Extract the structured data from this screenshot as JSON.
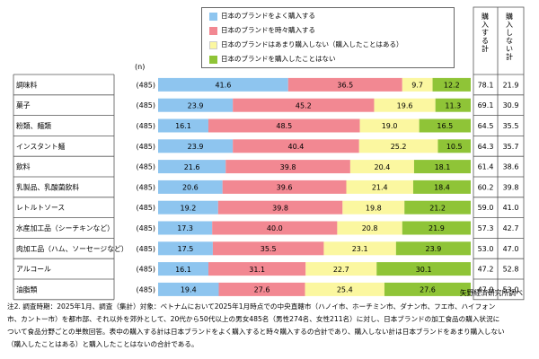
{
  "legend": [
    {
      "label": "日本のブランドをよく購入する",
      "color": "#8ec5ef"
    },
    {
      "label": "日本のブランドを時々購入する",
      "color": "#f28892"
    },
    {
      "label": "日本のブランドはあまり購入しない（購入したことはある）",
      "color": "#fbf7a0"
    },
    {
      "label": "日本のブランドを購入したことはない",
      "color": "#8fc437"
    }
  ],
  "n_header": "(n)",
  "sum_headers": {
    "buy": "購入する計",
    "nobuy": "購入しない計"
  },
  "chart_data": {
    "type": "bar",
    "orientation": "horizontal",
    "stacked": true,
    "percent_stacked": true,
    "categories": [
      "調味料",
      "菓子",
      "粉類、麺類",
      "インスタント麺",
      "飲料",
      "乳製品、乳酸菌飲料",
      "レトルトソース",
      "水産加工品（シーチキンなど）",
      "肉加工品（ハム、ソーセージなど）",
      "アルコール",
      "油脂類"
    ],
    "n": [
      "(485)",
      "(485)",
      "(485)",
      "(485)",
      "(485)",
      "(485)",
      "(485)",
      "(485)",
      "(485)",
      "(485)",
      "(485)"
    ],
    "series": [
      {
        "name": "日本のブランドをよく購入する",
        "values": [
          41.6,
          23.9,
          16.1,
          23.9,
          21.6,
          20.6,
          19.2,
          17.3,
          17.5,
          16.1,
          19.4
        ]
      },
      {
        "name": "日本のブランドを時々購入する",
        "values": [
          36.5,
          45.2,
          48.5,
          40.4,
          39.8,
          39.6,
          39.8,
          40.0,
          35.5,
          31.1,
          27.6
        ]
      },
      {
        "name": "日本のブランドはあまり購入しない（購入したことはある）",
        "values": [
          9.7,
          19.6,
          19.0,
          25.2,
          20.4,
          21.4,
          19.8,
          20.8,
          23.1,
          22.7,
          25.4
        ]
      },
      {
        "name": "日本のブランドを購入したことはない",
        "values": [
          12.2,
          11.3,
          16.5,
          10.5,
          18.1,
          18.4,
          21.2,
          21.9,
          23.9,
          30.1,
          27.6
        ]
      }
    ],
    "buy_total": [
      78.1,
      69.1,
      64.5,
      64.3,
      61.4,
      60.2,
      59.0,
      57.3,
      53.0,
      47.2,
      47.0
    ],
    "nobuy_total": [
      21.9,
      30.9,
      35.5,
      35.7,
      38.6,
      39.8,
      41.0,
      42.7,
      47.0,
      52.8,
      53.0
    ],
    "xlim": [
      0,
      100
    ],
    "unit": "%"
  },
  "source": "矢野経済研究所調べ",
  "note": [
    "注2. 調査時期：2025年1月、調査（集計）対象：ベトナムにおいて2025年1月時点での中央直轄市（ハノイ市、ホーチミン市、ダナン市、フエ市、ハイフォン",
    "市、カントー市）を都市部、それ以外を郊外として、20代から50代以上の男女485名（男性274名、女性211名）に対し、日本ブランドの加工食品の購入状況に",
    "ついて食品分野ごとの単数回答。表中の購入する計は日本ブランドをよく購入すると時々購入するの合計であり、購入しない計は日本ブランドをあまり購入しない",
    "（購入したことはある）と購入したことはないの合計である。"
  ]
}
